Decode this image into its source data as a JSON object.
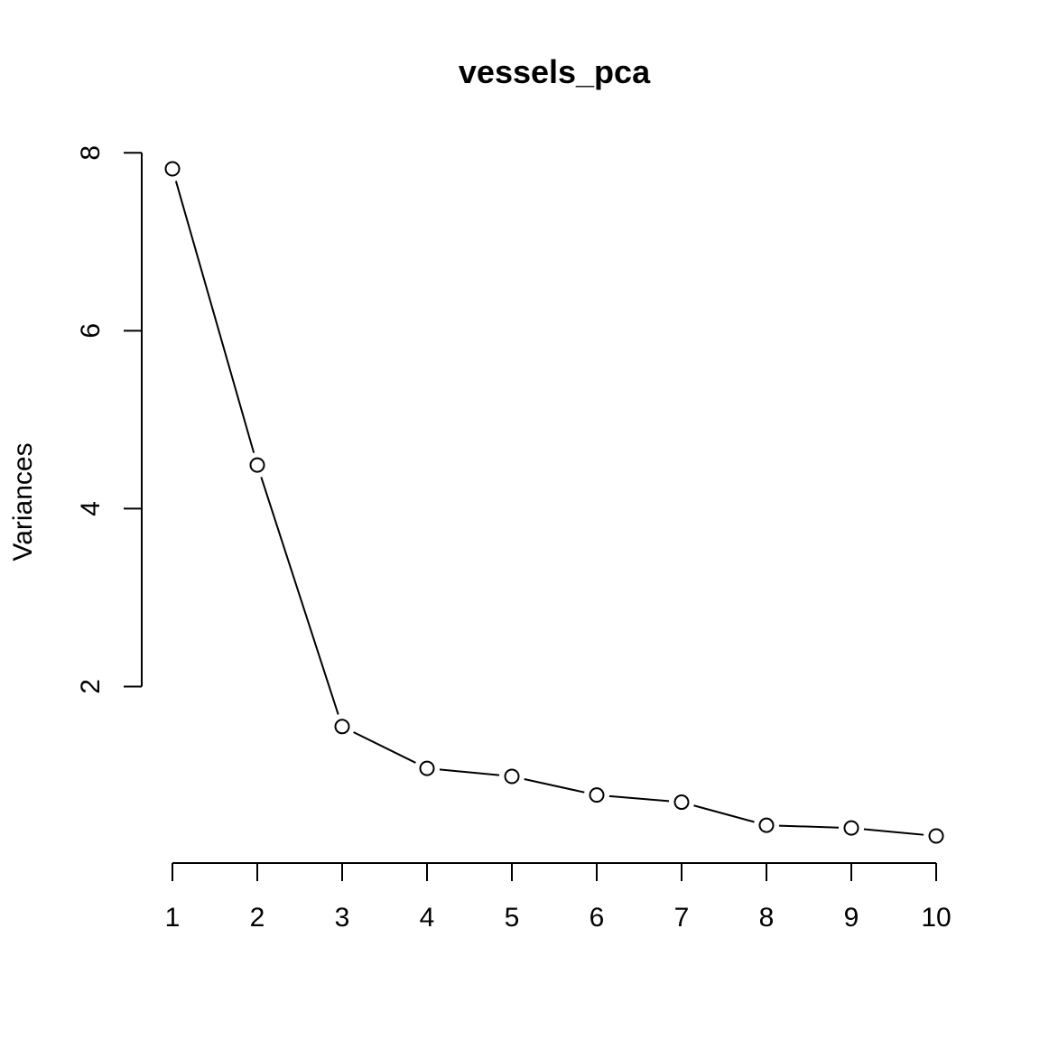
{
  "chart_data": {
    "type": "line",
    "title": "vessels_pca",
    "xlabel": "",
    "ylabel": "Variances",
    "x": [
      1,
      2,
      3,
      4,
      5,
      6,
      7,
      8,
      9,
      10
    ],
    "x_ticks": [
      "1",
      "2",
      "3",
      "4",
      "5",
      "6",
      "7",
      "8",
      "9",
      "10"
    ],
    "y_ticks": [
      "2",
      "4",
      "6",
      "8"
    ],
    "xlim": [
      1,
      10
    ],
    "ylim": [
      0.32,
      7.82
    ],
    "grid": false,
    "legend": "none",
    "marker": "open-circle",
    "series": [
      {
        "values": [
          7.82,
          4.49,
          1.55,
          1.08,
          0.99,
          0.78,
          0.7,
          0.44,
          0.41,
          0.32
        ]
      }
    ]
  }
}
